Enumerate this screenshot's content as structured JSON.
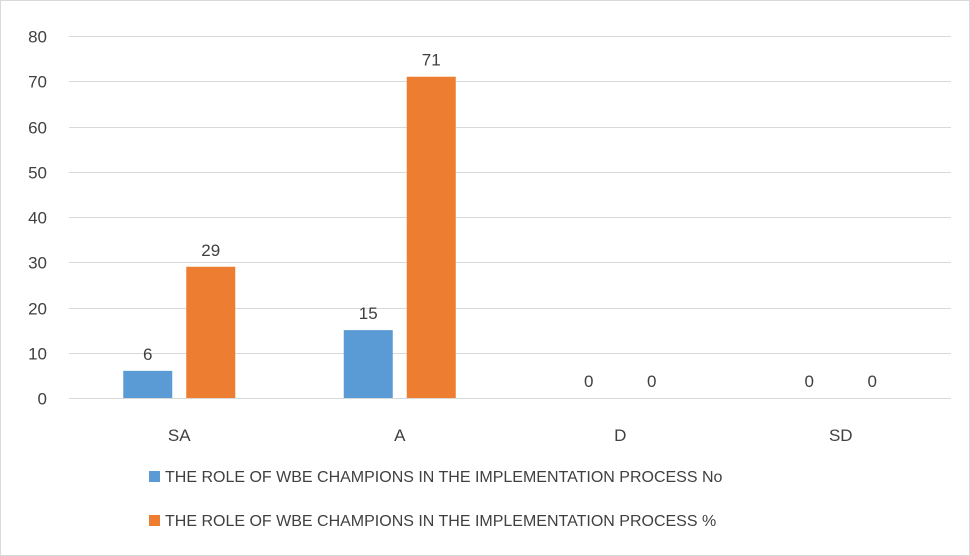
{
  "chart_data": {
    "type": "bar",
    "title": "",
    "xlabel": "",
    "ylabel": "",
    "categories": [
      "SA",
      "A",
      "D",
      "SD"
    ],
    "series": [
      {
        "name": "THE ROLE OF WBE CHAMPIONS IN THE IMPLEMENTATION PROCESS No",
        "values": [
          6,
          15,
          0,
          0
        ],
        "color": "#5b9bd5"
      },
      {
        "name": "THE ROLE OF WBE CHAMPIONS IN THE IMPLEMENTATION PROCESS %",
        "values": [
          29,
          71,
          0,
          0
        ],
        "color": "#ed7d31"
      }
    ],
    "ylim": [
      0,
      80
    ],
    "yticks": [
      0,
      10,
      20,
      30,
      40,
      50,
      60,
      70,
      80
    ],
    "grid": true,
    "data_labels": true,
    "legend_position": "bottom",
    "gridline_color": "#d9d9d9",
    "text_color": "#404040"
  }
}
